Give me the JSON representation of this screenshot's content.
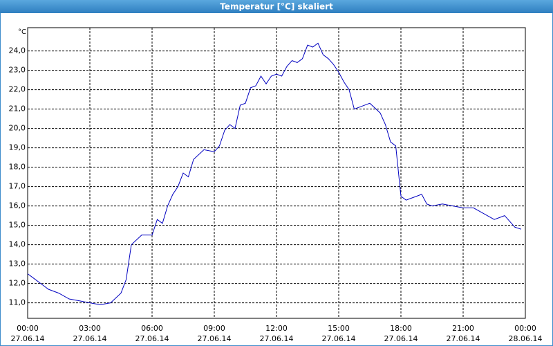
{
  "chart_data": {
    "type": "line",
    "title": "Temperatur [°C] skaliert",
    "ylabel": "°C",
    "x": [
      0,
      0.25,
      0.5,
      0.75,
      1,
      1.5,
      2,
      2.5,
      3,
      3.5,
      4,
      4.5,
      4.75,
      5,
      5.5,
      6,
      6.25,
      6.5,
      6.75,
      7,
      7.25,
      7.5,
      7.75,
      8,
      8.5,
      9,
      9.25,
      9.5,
      9.75,
      10,
      10.25,
      10.5,
      10.75,
      11,
      11.25,
      11.5,
      11.75,
      12,
      12.25,
      12.5,
      12.75,
      13,
      13.25,
      13.5,
      13.75,
      14,
      14.25,
      14.5,
      14.75,
      15,
      15.25,
      15.5,
      15.75,
      16,
      16.5,
      17,
      17.25,
      17.5,
      17.75,
      18,
      18.25,
      18.5,
      18.75,
      19,
      19.25,
      19.5,
      20,
      20.5,
      21,
      21.5,
      22,
      22.5,
      23,
      23.5,
      23.8
    ],
    "series": [
      {
        "name": "Temperatur",
        "color": "#0000c0",
        "values": [
          12.5,
          12.3,
          12.1,
          11.9,
          11.7,
          11.5,
          11.2,
          11.1,
          11.0,
          10.9,
          11.0,
          11.5,
          12.2,
          14.0,
          14.5,
          14.5,
          15.3,
          15.1,
          16.0,
          16.6,
          17.0,
          17.7,
          17.5,
          18.4,
          18.9,
          18.8,
          19.1,
          19.9,
          20.2,
          20.0,
          21.2,
          21.3,
          22.1,
          22.2,
          22.7,
          22.3,
          22.7,
          22.8,
          22.7,
          23.2,
          23.5,
          23.4,
          23.6,
          24.3,
          24.2,
          24.4,
          23.8,
          23.6,
          23.3,
          22.9,
          22.4,
          22.0,
          21.0,
          21.1,
          21.3,
          20.8,
          20.2,
          19.3,
          19.1,
          16.5,
          16.3,
          16.4,
          16.5,
          16.6,
          16.1,
          16.0,
          16.1,
          16.0,
          15.9,
          15.9,
          15.6,
          15.3,
          15.5,
          14.9,
          14.8
        ]
      }
    ],
    "xlim": [
      0,
      24
    ],
    "ylim": [
      10.2,
      25.2
    ],
    "xticks": [
      {
        "value": 0,
        "label": "00:00",
        "date": "27.06.14"
      },
      {
        "value": 3,
        "label": "03:00",
        "date": "27.06.14"
      },
      {
        "value": 6,
        "label": "06:00",
        "date": "27.06.14"
      },
      {
        "value": 9,
        "label": "09:00",
        "date": "27.06.14"
      },
      {
        "value": 12,
        "label": "12:00",
        "date": "27.06.14"
      },
      {
        "value": 15,
        "label": "15:00",
        "date": "27.06.14"
      },
      {
        "value": 18,
        "label": "18:00",
        "date": "27.06.14"
      },
      {
        "value": 21,
        "label": "21:00",
        "date": "27.06.14"
      },
      {
        "value": 24,
        "label": "00:00",
        "date": "28.06.14"
      }
    ],
    "yticks": [
      {
        "value": 11,
        "label": "11,0"
      },
      {
        "value": 12,
        "label": "12,0"
      },
      {
        "value": 13,
        "label": "13,0"
      },
      {
        "value": 14,
        "label": "14,0"
      },
      {
        "value": 15,
        "label": "15,0"
      },
      {
        "value": 16,
        "label": "16,0"
      },
      {
        "value": 17,
        "label": "17,0"
      },
      {
        "value": 18,
        "label": "18,0"
      },
      {
        "value": 19,
        "label": "19,0"
      },
      {
        "value": 20,
        "label": "20,0"
      },
      {
        "value": 21,
        "label": "21,0"
      },
      {
        "value": 22,
        "label": "22,0"
      },
      {
        "value": 23,
        "label": "23,0"
      },
      {
        "value": 24,
        "label": "24,0"
      }
    ],
    "grid": true
  }
}
